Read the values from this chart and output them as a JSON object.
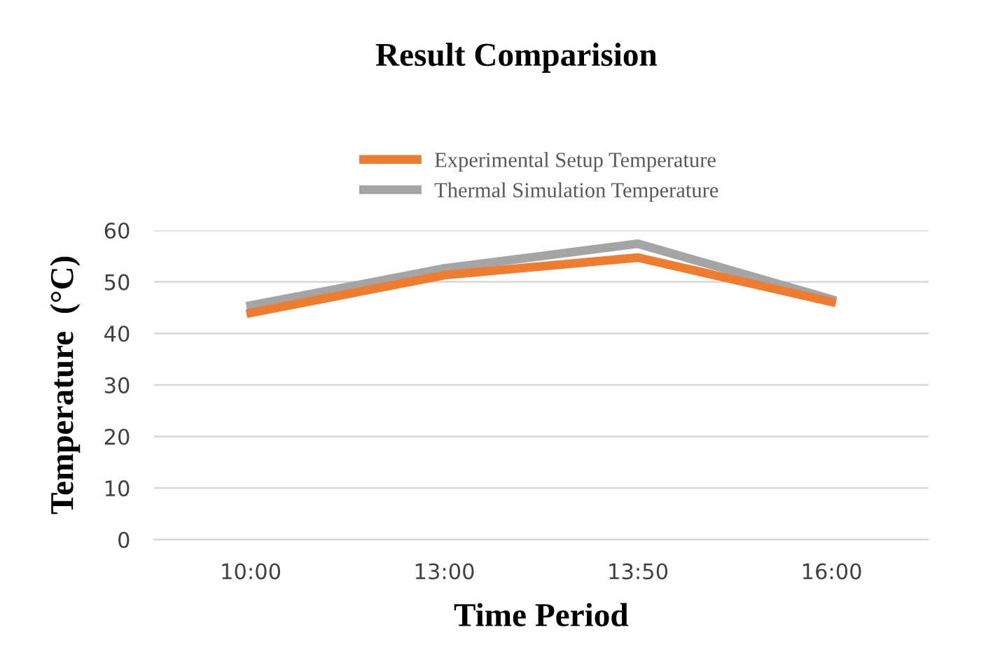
{
  "chart_data": {
    "type": "line",
    "title": "Result Comparision",
    "xlabel": "Time Period",
    "ylabel": "Temperature  (°C)",
    "categories": [
      "10:00",
      "13:00",
      "13:50",
      "16:00"
    ],
    "series": [
      {
        "name": "Experimental Setup Temperature",
        "color": "#ed7d31",
        "values": [
          44.0,
          51.3,
          54.7,
          46.1
        ]
      },
      {
        "name": "Thermal Simulation Temperature",
        "color": "#a5a5a5",
        "values": [
          45.4,
          52.6,
          57.4,
          46.6
        ]
      }
    ],
    "ylim": [
      0,
      60
    ],
    "yticks": [
      0,
      10,
      20,
      30,
      40,
      50,
      60
    ],
    "grid": "y",
    "legend": "top",
    "marker": "none",
    "line_style": "solid"
  }
}
